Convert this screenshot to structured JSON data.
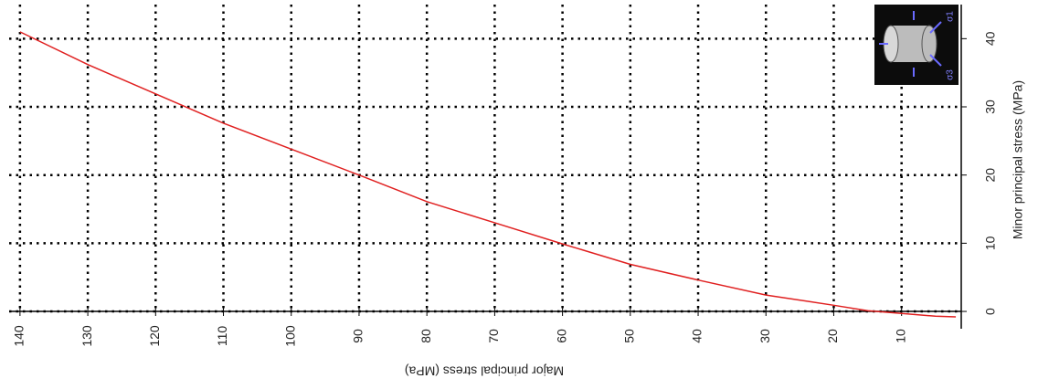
{
  "chart_data": {
    "type": "line",
    "x_label": "Major principal stress (MPa)",
    "y_label": "Minor principal stress (MPa)",
    "x": [
      140,
      130,
      120,
      110,
      100,
      90,
      80,
      70,
      60,
      50,
      40,
      30,
      20,
      15,
      10,
      5,
      2
    ],
    "series": [
      {
        "color": "#e02020",
        "values": [
          41,
          36.2,
          31.9,
          27.6,
          23.8,
          20,
          16.1,
          13,
          9.9,
          6.9,
          4.6,
          2.4,
          0.9,
          0.1,
          -0.3,
          -0.7,
          -0.8
        ]
      }
    ],
    "xlim": [
      141.6,
      1.2
    ],
    "ylim": [
      -1.2,
      45
    ],
    "xticks": [
      140,
      130,
      120,
      110,
      100,
      90,
      80,
      70,
      60,
      50,
      40,
      30,
      20,
      10
    ],
    "yticks": [
      0,
      10,
      20,
      30,
      40
    ],
    "grid": true,
    "inset": {
      "sigma1": "σ1",
      "sigma3": "σ3"
    }
  }
}
